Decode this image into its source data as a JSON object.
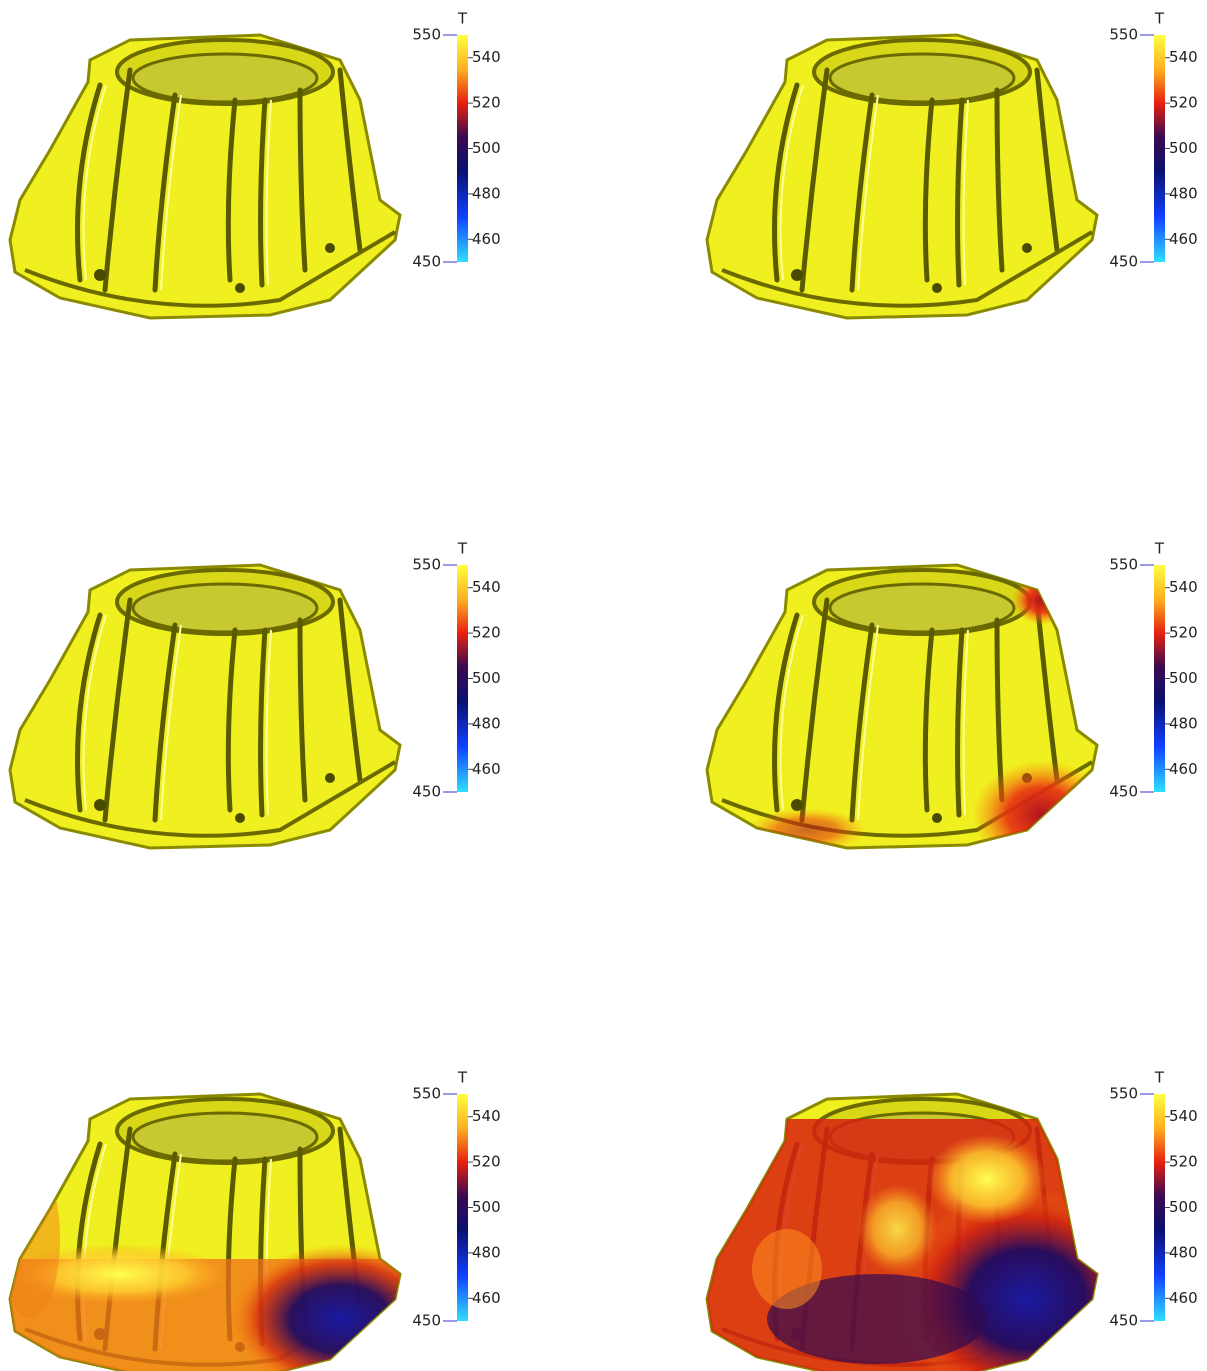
{
  "panels": [
    {
      "colorbar": {
        "title": "T",
        "max": 550,
        "min": 450,
        "ticks": [
          460,
          480,
          500,
          520,
          540
        ]
      }
    },
    {
      "colorbar": {
        "title": "T",
        "max": 550,
        "min": 450,
        "ticks": [
          460,
          480,
          500,
          520,
          540
        ]
      }
    },
    {
      "colorbar": {
        "title": "T",
        "max": 550,
        "min": 450,
        "ticks": [
          460,
          480,
          500,
          520,
          540
        ]
      }
    },
    {
      "colorbar": {
        "title": "T",
        "max": 550,
        "min": 450,
        "ticks": [
          460,
          480,
          500,
          520,
          540
        ]
      }
    },
    {
      "colorbar": {
        "title": "T",
        "max": 550,
        "min": 450,
        "ticks": [
          460,
          480,
          500,
          520,
          540
        ]
      }
    },
    {
      "colorbar": {
        "title": "T",
        "max": 550,
        "min": 450,
        "ticks": [
          460,
          480,
          500,
          520,
          540
        ]
      }
    }
  ]
}
